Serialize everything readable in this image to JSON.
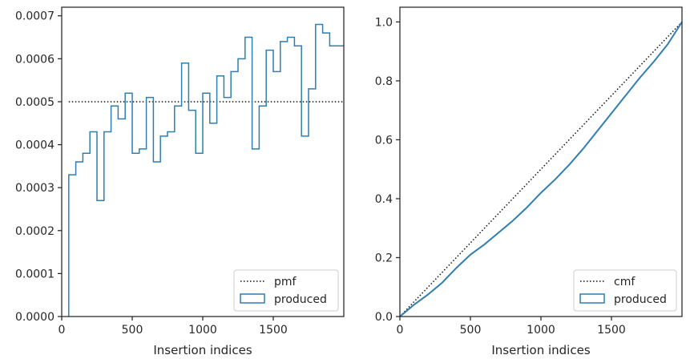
{
  "colors": {
    "produced": "#2f7fb0",
    "reference": "#111111",
    "axes": "#262626"
  },
  "chart_data": [
    {
      "type": "histogram-step",
      "xlabel": "Insertion indices",
      "ylabel": "",
      "xlim": [
        0,
        2000
      ],
      "ylim": [
        0,
        0.00072
      ],
      "xticks": [
        0,
        500,
        1000,
        1500
      ],
      "xtick_labels": [
        "0",
        "500",
        "1000",
        "1500"
      ],
      "yticks": [
        0,
        0.0001,
        0.0002,
        0.0003,
        0.0004,
        0.0005,
        0.0006,
        0.0007
      ],
      "ytick_labels": [
        "0.0000",
        "0.0001",
        "0.0002",
        "0.0003",
        "0.0004",
        "0.0005",
        "0.0006",
        "0.0007"
      ],
      "grid": false,
      "legend_position": "lower-right",
      "series": [
        {
          "name": "pmf",
          "style": "dotted",
          "x": [
            50,
            2000
          ],
          "y": [
            0.0005,
            0.0005
          ]
        },
        {
          "name": "produced",
          "style": "step",
          "bin_edges": [
            50,
            100,
            150,
            200,
            250,
            300,
            350,
            400,
            450,
            500,
            550,
            600,
            650,
            700,
            750,
            800,
            850,
            900,
            950,
            1000,
            1050,
            1100,
            1150,
            1200,
            1250,
            1300,
            1350,
            1400,
            1450,
            1500,
            1550,
            1600,
            1650,
            1700,
            1750,
            1800,
            1850,
            1900,
            1950,
            2000
          ],
          "values": [
            0.00033,
            0.00036,
            0.00038,
            0.00043,
            0.00027,
            0.00043,
            0.00049,
            0.00046,
            0.00052,
            0.00038,
            0.00039,
            0.00051,
            0.00036,
            0.00042,
            0.00043,
            0.00049,
            0.00059,
            0.00048,
            0.00038,
            0.00052,
            0.00045,
            0.00056,
            0.00051,
            0.00057,
            0.0006,
            0.00065,
            0.00039,
            0.00049,
            0.00062,
            0.00057,
            0.00064,
            0.00065,
            0.00063,
            0.00042,
            0.00053,
            0.00068,
            0.00066,
            0.00063,
            0.00063
          ]
        }
      ]
    },
    {
      "type": "line",
      "xlabel": "Insertion indices",
      "ylabel": "",
      "xlim": [
        0,
        2000
      ],
      "ylim": [
        0,
        1.05
      ],
      "xticks": [
        0,
        500,
        1000,
        1500
      ],
      "xtick_labels": [
        "0",
        "500",
        "1000",
        "1500"
      ],
      "yticks": [
        0,
        0.2,
        0.4,
        0.6,
        0.8,
        1.0
      ],
      "ytick_labels": [
        "0.0",
        "0.2",
        "0.4",
        "0.6",
        "0.8",
        "1.0"
      ],
      "grid": false,
      "legend_position": "lower-right",
      "series": [
        {
          "name": "cmf",
          "style": "dotted",
          "x": [
            0,
            2000
          ],
          "y": [
            0,
            1.0
          ]
        },
        {
          "name": "produced",
          "style": "solid",
          "x": [
            0,
            100,
            200,
            300,
            400,
            500,
            600,
            700,
            800,
            900,
            1000,
            1100,
            1200,
            1300,
            1400,
            1500,
            1600,
            1700,
            1800,
            1900,
            2000
          ],
          "y": [
            0,
            0.04,
            0.075,
            0.115,
            0.165,
            0.21,
            0.245,
            0.285,
            0.325,
            0.37,
            0.42,
            0.465,
            0.515,
            0.57,
            0.63,
            0.69,
            0.75,
            0.81,
            0.865,
            0.925,
            1.0
          ]
        }
      ]
    }
  ]
}
